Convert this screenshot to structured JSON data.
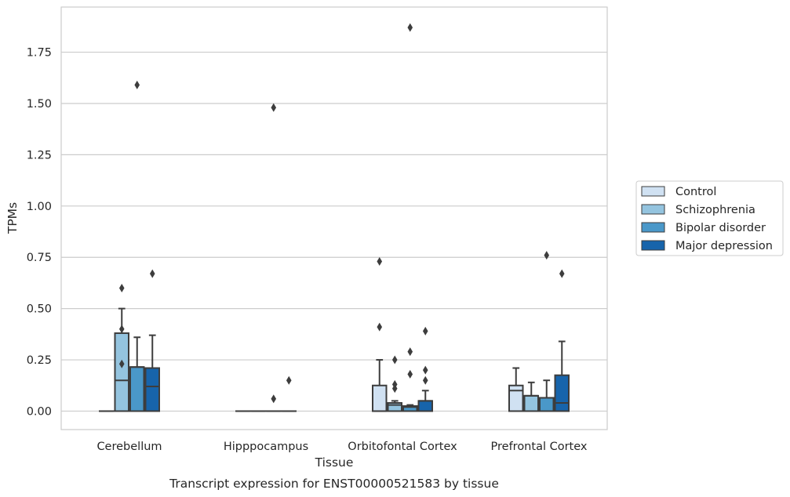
{
  "chart_data": {
    "type": "box",
    "title": "",
    "caption": "Transcript expression for ENST00000521583 by tissue",
    "xlabel": "Tissue",
    "ylabel": "TPMs",
    "ylim": [
      -0.09,
      1.97
    ],
    "yticks": [
      "0.00",
      "0.25",
      "0.50",
      "0.75",
      "1.00",
      "1.25",
      "1.50",
      "1.75"
    ],
    "ytick_values": [
      0,
      0.25,
      0.5,
      0.75,
      1.0,
      1.25,
      1.5,
      1.75
    ],
    "categories": [
      "Cerebellum",
      "Hipppocampus",
      "Orbitofontal Cortex",
      "Prefrontal Cortex"
    ],
    "grid": "horizontal",
    "legend_position": "right",
    "series": [
      {
        "name": "Control",
        "color": "#d0e1f2",
        "boxes": [
          {
            "q1": 0,
            "median": 0,
            "q3": 0,
            "whislo": 0,
            "whishi": 0,
            "fliers": []
          },
          {
            "q1": 0,
            "median": 0,
            "q3": 0,
            "whislo": 0,
            "whishi": 0,
            "fliers": []
          },
          {
            "q1": 0,
            "median": 0,
            "q3": 0.125,
            "whislo": 0,
            "whishi": 0.25,
            "fliers": [
              0.41,
              0.73
            ]
          },
          {
            "q1": 0,
            "median": 0.1,
            "q3": 0.125,
            "whislo": 0,
            "whishi": 0.21,
            "fliers": []
          }
        ]
      },
      {
        "name": "Schizophrenia",
        "color": "#94c4df",
        "boxes": [
          {
            "q1": 0,
            "median": 0.15,
            "q3": 0.38,
            "whislo": 0,
            "whishi": 0.5,
            "fliers": [
              0.23,
              0.4,
              0.6
            ]
          },
          {
            "q1": 0,
            "median": 0,
            "q3": 0,
            "whislo": 0,
            "whishi": 0,
            "fliers": []
          },
          {
            "q1": 0,
            "median": 0.03,
            "q3": 0.04,
            "whislo": 0,
            "whishi": 0.05,
            "fliers": [
              0.11,
              0.13,
              0.25
            ]
          },
          {
            "q1": 0,
            "median": 0.075,
            "q3": 0.075,
            "whislo": 0,
            "whishi": 0.14,
            "fliers": []
          }
        ]
      },
      {
        "name": "Bipolar disorder",
        "color": "#4a98c9",
        "boxes": [
          {
            "q1": 0,
            "median": 0.215,
            "q3": 0.215,
            "whislo": 0,
            "whishi": 0.36,
            "fliers": [
              1.59
            ]
          },
          {
            "q1": 0,
            "median": 0,
            "q3": 0,
            "whislo": 0,
            "whishi": 0,
            "fliers": [
              0.06,
              1.48
            ]
          },
          {
            "q1": 0,
            "median": 0.02,
            "q3": 0.025,
            "whislo": 0,
            "whishi": 0.03,
            "fliers": [
              0.18,
              0.29,
              1.87
            ]
          },
          {
            "q1": 0,
            "median": 0.065,
            "q3": 0.065,
            "whislo": 0,
            "whishi": 0.15,
            "fliers": [
              0.76
            ]
          }
        ]
      },
      {
        "name": "Major depression",
        "color": "#1764ab",
        "boxes": [
          {
            "q1": 0,
            "median": 0.12,
            "q3": 0.21,
            "whislo": 0,
            "whishi": 0.37,
            "fliers": [
              0.67
            ]
          },
          {
            "q1": 0,
            "median": 0,
            "q3": 0,
            "whislo": 0,
            "whishi": 0,
            "fliers": [
              0.15
            ]
          },
          {
            "q1": 0,
            "median": 0.05,
            "q3": 0.05,
            "whislo": 0,
            "whishi": 0.1,
            "fliers": [
              0.15,
              0.2,
              0.39
            ]
          },
          {
            "q1": 0,
            "median": 0.04,
            "q3": 0.175,
            "whislo": 0,
            "whishi": 0.34,
            "fliers": [
              0.67
            ]
          }
        ]
      }
    ]
  }
}
